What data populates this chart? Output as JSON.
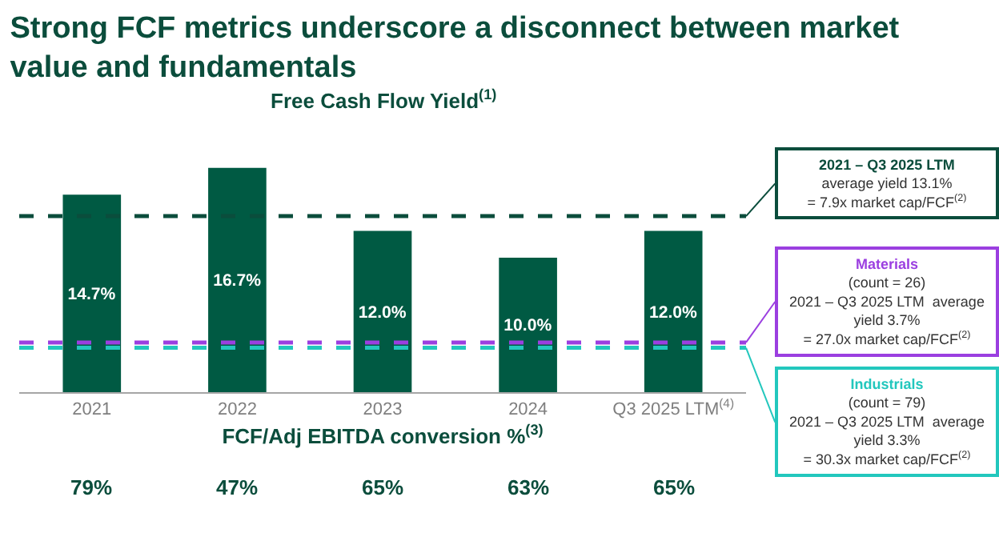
{
  "chart_data": {
    "type": "bar",
    "title": "Strong FCF metrics underscore a disconnect between market value and fundamentals",
    "subtitle": "Free Cash Flow Yield$^{(1)}$",
    "xlabel": "FCF/Adj EBITDA conversion %$^{(3)}$",
    "categories": [
      "2021",
      "2022",
      "2023",
      "2024",
      "Q3 2025 LTM$^{(4)}$"
    ],
    "values": [
      14.7,
      16.7,
      12.0,
      10.0,
      12.0
    ],
    "color": "#005a43",
    "data_labels": true,
    "value_labels": [
      "14.7%",
      "16.7%",
      "12.0%",
      "10.0%",
      "12.0%"
    ],
    "ref_lines": [
      {
        "axis": "y",
        "value": 13.1,
        "label": "2021 – Q3 2025 LTM\naverage yield 13.1%\n= 7.9x market cap/FCF$^{(2)}$",
        "color": "#0b4d3c",
        "line_style": "dashed"
      },
      {
        "axis": "y",
        "value": 3.7,
        "label": "Materials\n(count = 26)\n2021 – Q3 2025 LTM  average\nyield 3.7%\n= 27.0x market cap/FCF$^{(2)}$",
        "color": "#9b3fe0",
        "line_style": "dashed"
      },
      {
        "axis": "y",
        "value": 3.3,
        "label": "Industrials\n(count = 79)\n2021 – Q3 2025 LTM  average\nyield 3.3%\n= 30.3x market cap/FCF$^{(2)}$",
        "color": "#22c7bd",
        "line_style": "dashed"
      }
    ],
    "annotations": [
      "79%",
      "47%",
      "65%",
      "63%",
      "65%"
    ],
    "grid": false,
    "legend": false
  }
}
